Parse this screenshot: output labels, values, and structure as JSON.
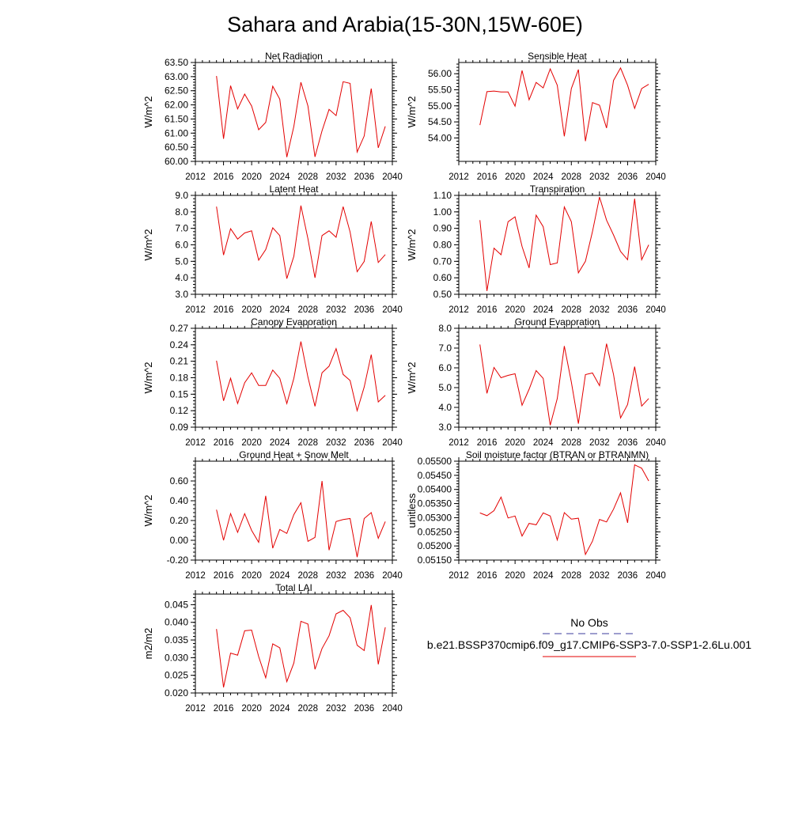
{
  "title": "Sahara and Arabia(15-30N,15W-60E)",
  "chart_data": [
    {
      "type": "line",
      "title": "Net Radiation",
      "ylabel": "W/m^2",
      "xlim": [
        2012,
        2040
      ],
      "xticks": [
        "2012",
        "2016",
        "2020",
        "2024",
        "2028",
        "2032",
        "2036",
        "2040"
      ],
      "ylim": [
        60.0,
        63.5
      ],
      "yticks": [
        "60.00",
        "60.50",
        "61.00",
        "61.50",
        "62.00",
        "62.50",
        "63.00",
        "63.50"
      ],
      "x": [
        2015,
        2016,
        2017,
        2018,
        2019,
        2020,
        2021,
        2022,
        2023,
        2024,
        2025,
        2026,
        2027,
        2028,
        2029,
        2030,
        2031,
        2032,
        2033,
        2034,
        2035,
        2036,
        2037,
        2038,
        2039
      ],
      "series": [
        {
          "values": [
            63.02,
            60.8,
            62.68,
            61.86,
            62.38,
            61.96,
            61.12,
            61.38,
            62.66,
            62.2,
            60.15,
            61.24,
            62.8,
            61.96,
            60.16,
            61.08,
            61.84,
            61.62,
            62.82,
            62.76,
            60.33,
            60.9,
            62.58,
            60.48,
            61.24
          ]
        }
      ]
    },
    {
      "type": "line",
      "title": "Sensible Heat",
      "ylabel": "W/m^2",
      "xlim": [
        2012,
        2040
      ],
      "xticks": [
        "2012",
        "2016",
        "2020",
        "2024",
        "2028",
        "2032",
        "2036",
        "2040"
      ],
      "ylim": [
        53.27,
        56.35
      ],
      "yticks": [
        "54.00",
        "54.50",
        "55.00",
        "55.50",
        "56.00"
      ],
      "x": [
        2015,
        2016,
        2017,
        2018,
        2019,
        2020,
        2021,
        2022,
        2023,
        2024,
        2025,
        2026,
        2027,
        2028,
        2029,
        2030,
        2031,
        2032,
        2033,
        2034,
        2035,
        2036,
        2037,
        2038,
        2039
      ],
      "series": [
        {
          "values": [
            54.4,
            55.44,
            55.46,
            55.43,
            55.43,
            54.99,
            56.1,
            55.19,
            55.73,
            55.56,
            56.15,
            55.64,
            54.05,
            55.54,
            56.13,
            53.9,
            55.1,
            55.02,
            54.31,
            55.79,
            56.18,
            55.64,
            54.92,
            55.54,
            55.67
          ]
        }
      ]
    },
    {
      "type": "line",
      "title": "Latent Heat",
      "ylabel": "W/m^2",
      "xlim": [
        2012,
        2040
      ],
      "xticks": [
        "2012",
        "2016",
        "2020",
        "2024",
        "2028",
        "2032",
        "2036",
        "2040"
      ],
      "ylim": [
        3.0,
        9.0
      ],
      "yticks": [
        "3.0",
        "4.0",
        "5.0",
        "6.0",
        "7.0",
        "8.0",
        "9.0"
      ],
      "x": [
        2015,
        2016,
        2017,
        2018,
        2019,
        2020,
        2021,
        2022,
        2023,
        2024,
        2025,
        2026,
        2027,
        2028,
        2029,
        2030,
        2031,
        2032,
        2033,
        2034,
        2035,
        2036,
        2037,
        2038,
        2039
      ],
      "series": [
        {
          "values": [
            8.32,
            5.38,
            6.98,
            6.35,
            6.72,
            6.85,
            5.07,
            5.71,
            7.03,
            6.56,
            3.95,
            5.31,
            8.38,
            6.37,
            4.0,
            6.56,
            6.85,
            6.46,
            8.32,
            6.78,
            4.37,
            4.99,
            7.42,
            4.93,
            5.41
          ]
        }
      ]
    },
    {
      "type": "line",
      "title": "Transpiration",
      "ylabel": "W/m^2",
      "xlim": [
        2012,
        2040
      ],
      "xticks": [
        "2012",
        "2016",
        "2020",
        "2024",
        "2028",
        "2032",
        "2036",
        "2040"
      ],
      "ylim": [
        0.5,
        1.1
      ],
      "yticks": [
        "0.50",
        "0.60",
        "0.70",
        "0.80",
        "0.90",
        "1.00",
        "1.10"
      ],
      "x": [
        2015,
        2016,
        2017,
        2018,
        2019,
        2020,
        2021,
        2022,
        2023,
        2024,
        2025,
        2026,
        2027,
        2028,
        2029,
        2030,
        2031,
        2032,
        2033,
        2034,
        2035,
        2036,
        2037,
        2038,
        2039
      ],
      "series": [
        {
          "values": [
            0.95,
            0.52,
            0.78,
            0.74,
            0.94,
            0.97,
            0.79,
            0.66,
            0.98,
            0.91,
            0.68,
            0.69,
            1.03,
            0.94,
            0.63,
            0.7,
            0.88,
            1.09,
            0.95,
            0.86,
            0.76,
            0.71,
            1.08,
            0.71,
            0.8
          ]
        }
      ]
    },
    {
      "type": "line",
      "title": "Canopy Evaporation",
      "ylabel": "W/m^2",
      "xlim": [
        2012,
        2040
      ],
      "xticks": [
        "2012",
        "2016",
        "2020",
        "2024",
        "2028",
        "2032",
        "2036",
        "2040"
      ],
      "ylim": [
        0.09,
        0.27
      ],
      "yticks": [
        "0.09",
        "0.12",
        "0.15",
        "0.18",
        "0.21",
        "0.24",
        "0.27"
      ],
      "x": [
        2015,
        2016,
        2017,
        2018,
        2019,
        2020,
        2021,
        2022,
        2023,
        2024,
        2025,
        2026,
        2027,
        2028,
        2029,
        2030,
        2031,
        2032,
        2033,
        2034,
        2035,
        2036,
        2037,
        2038,
        2039
      ],
      "series": [
        {
          "values": [
            0.211,
            0.138,
            0.179,
            0.133,
            0.171,
            0.189,
            0.166,
            0.166,
            0.194,
            0.179,
            0.133,
            0.179,
            0.246,
            0.181,
            0.128,
            0.189,
            0.201,
            0.233,
            0.186,
            0.175,
            0.12,
            0.163,
            0.222,
            0.136,
            0.148
          ]
        }
      ]
    },
    {
      "type": "line",
      "title": "Ground Evaporation",
      "ylabel": "W/m^2",
      "xlim": [
        2012,
        2040
      ],
      "xticks": [
        "2012",
        "2016",
        "2020",
        "2024",
        "2028",
        "2032",
        "2036",
        "2040"
      ],
      "ylim": [
        3.0,
        8.0
      ],
      "yticks": [
        "3.0",
        "4.0",
        "5.0",
        "6.0",
        "7.0",
        "8.0"
      ],
      "x": [
        2015,
        2016,
        2017,
        2018,
        2019,
        2020,
        2021,
        2022,
        2023,
        2024,
        2025,
        2026,
        2027,
        2028,
        2029,
        2030,
        2031,
        2032,
        2033,
        2034,
        2035,
        2036,
        2037,
        2038,
        2039
      ],
      "series": [
        {
          "values": [
            7.18,
            4.71,
            6.02,
            5.5,
            5.62,
            5.7,
            4.11,
            4.92,
            5.86,
            5.47,
            3.1,
            4.45,
            7.1,
            5.28,
            3.18,
            5.66,
            5.74,
            5.1,
            7.22,
            5.67,
            3.47,
            4.15,
            6.06,
            4.07,
            4.45
          ]
        }
      ]
    },
    {
      "type": "line",
      "title": "Ground Heat + Snow Melt",
      "ylabel": "W/m^2",
      "xlim": [
        2012,
        2040
      ],
      "xticks": [
        "2012",
        "2016",
        "2020",
        "2024",
        "2028",
        "2032",
        "2036",
        "2040"
      ],
      "ylim": [
        -0.2,
        0.8
      ],
      "yticks": [
        "-0.20",
        "0.00",
        "0.20",
        "0.40",
        "0.60"
      ],
      "x": [
        2015,
        2016,
        2017,
        2018,
        2019,
        2020,
        2021,
        2022,
        2023,
        2024,
        2025,
        2026,
        2027,
        2028,
        2029,
        2030,
        2031,
        2032,
        2033,
        2034,
        2035,
        2036,
        2037,
        2038,
        2039
      ],
      "series": [
        {
          "values": [
            0.31,
            0.0,
            0.27,
            0.08,
            0.27,
            0.1,
            -0.02,
            0.45,
            -0.08,
            0.11,
            0.07,
            0.26,
            0.38,
            -0.01,
            0.03,
            0.6,
            -0.1,
            0.19,
            0.21,
            0.22,
            -0.17,
            0.22,
            0.28,
            0.02,
            0.19
          ]
        }
      ]
    },
    {
      "type": "line",
      "title": "Soil moisture factor (BTRAN or BTRANMN)",
      "ylabel": "unitless",
      "xlim": [
        2012,
        2040
      ],
      "xticks": [
        "2012",
        "2016",
        "2020",
        "2024",
        "2028",
        "2032",
        "2036",
        "2040"
      ],
      "ylim": [
        0.0515,
        0.055
      ],
      "yticks": [
        "0.05150",
        "0.05200",
        "0.05250",
        "0.05300",
        "0.05350",
        "0.05400",
        "0.05450",
        "0.05500"
      ],
      "x": [
        2015,
        2016,
        2017,
        2018,
        2019,
        2020,
        2021,
        2022,
        2023,
        2024,
        2025,
        2026,
        2027,
        2028,
        2029,
        2030,
        2031,
        2032,
        2033,
        2034,
        2035,
        2036,
        2037,
        2038,
        2039
      ],
      "series": [
        {
          "values": [
            0.05317,
            0.05307,
            0.05325,
            0.05373,
            0.05299,
            0.05306,
            0.05235,
            0.0528,
            0.05275,
            0.05317,
            0.05306,
            0.05221,
            0.05318,
            0.05295,
            0.05298,
            0.0517,
            0.05217,
            0.05294,
            0.05285,
            0.0533,
            0.05388,
            0.05282,
            0.05487,
            0.05475,
            0.0543
          ]
        }
      ]
    },
    {
      "type": "line",
      "title": "Total LAI",
      "ylabel": "m2/m2",
      "xlim": [
        2012,
        2040
      ],
      "xticks": [
        "2012",
        "2016",
        "2020",
        "2024",
        "2028",
        "2032",
        "2036",
        "2040"
      ],
      "ylim": [
        0.02,
        0.048
      ],
      "yticks": [
        "0.020",
        "0.025",
        "0.030",
        "0.035",
        "0.040",
        "0.045"
      ],
      "x": [
        2015,
        2016,
        2017,
        2018,
        2019,
        2020,
        2021,
        2022,
        2023,
        2024,
        2025,
        2026,
        2027,
        2028,
        2029,
        2030,
        2031,
        2032,
        2033,
        2034,
        2035,
        2036,
        2037,
        2038,
        2039
      ],
      "series": [
        {
          "values": [
            0.0381,
            0.0216,
            0.0313,
            0.0307,
            0.0376,
            0.0378,
            0.0303,
            0.0243,
            0.0339,
            0.0328,
            0.0232,
            0.0285,
            0.0403,
            0.0395,
            0.0267,
            0.0326,
            0.0362,
            0.0424,
            0.0434,
            0.0413,
            0.0335,
            0.032,
            0.0449,
            0.0281,
            0.0386
          ]
        }
      ]
    }
  ],
  "legend": {
    "items": [
      {
        "label": "No Obs",
        "color": "#3b3b9e",
        "dash": true
      },
      {
        "label": "b.e21.BSSP370cmip6.f09_g17.CMIP6-SSP3-7.0-SSP1-2.6Lu.001",
        "color": "#e30000",
        "dash": false
      }
    ]
  },
  "colors": {
    "series": "#e30000",
    "axis": "#000000"
  }
}
